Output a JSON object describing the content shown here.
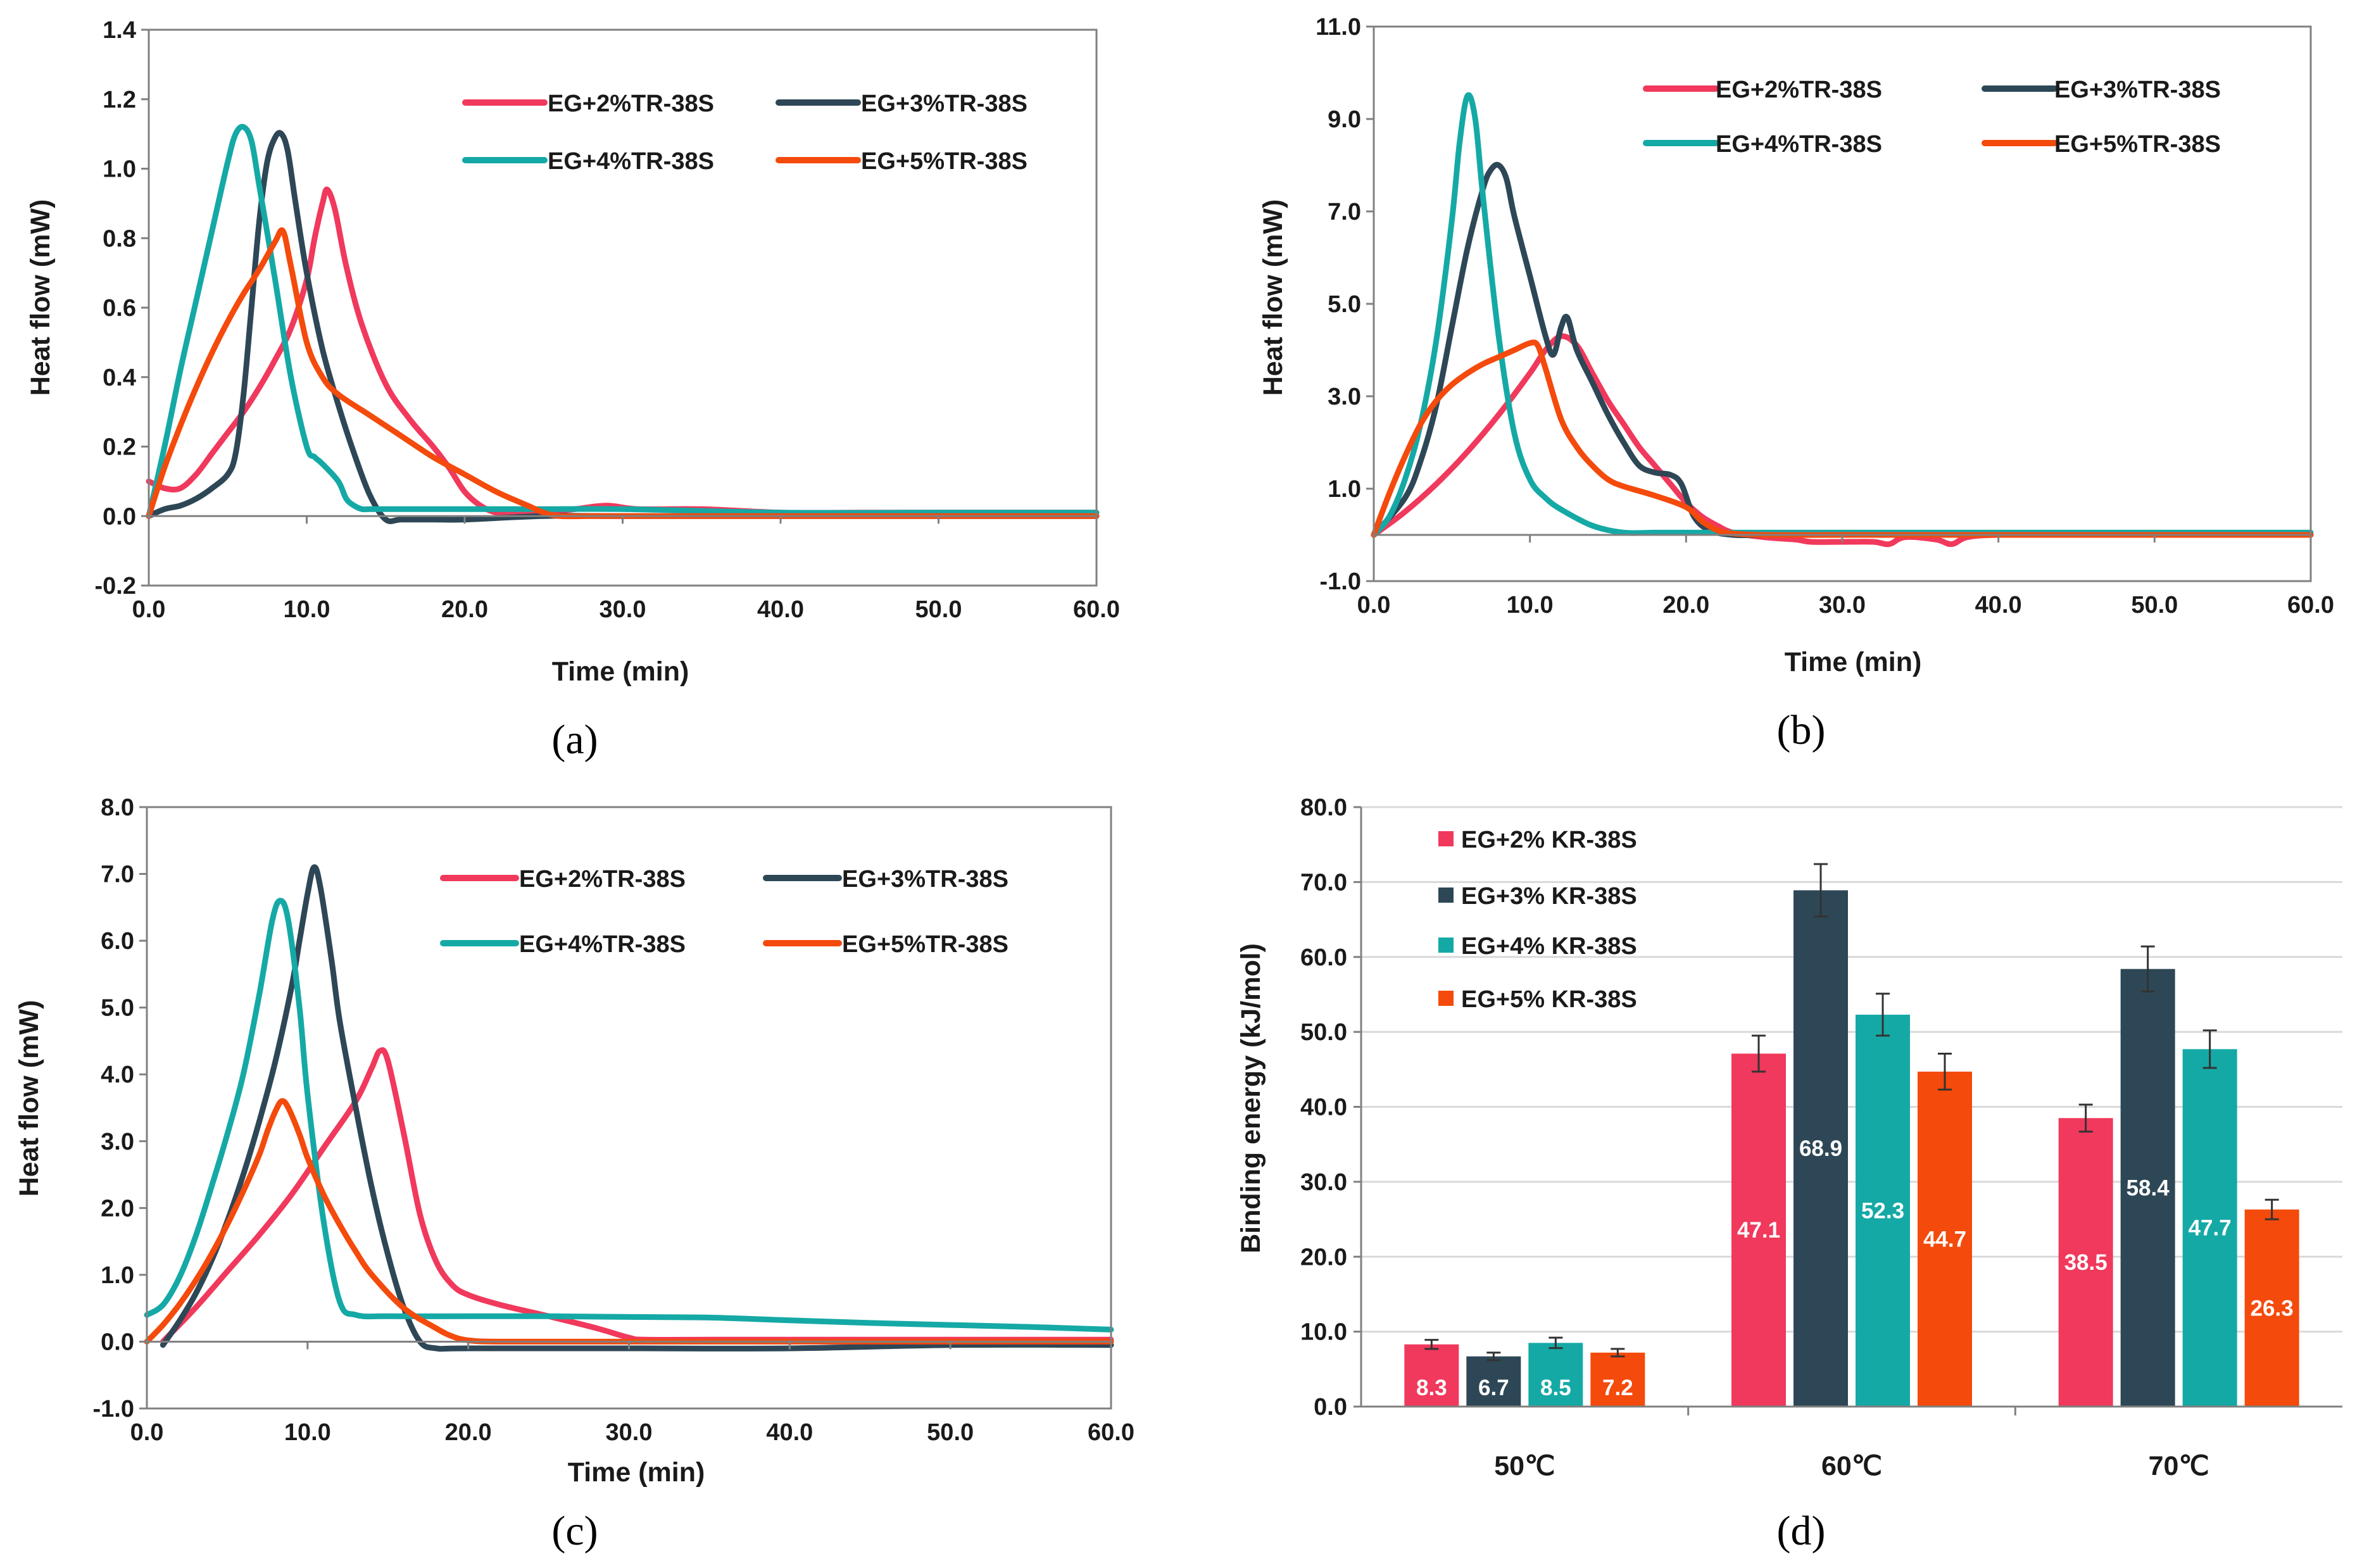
{
  "colors": {
    "EG+2%": "#f0395c",
    "EG+3%": "#2e4756",
    "EG+4%": "#15a9a6",
    "EG+5%": "#f44a0c",
    "axis": "#808080",
    "grid": "#d9d9d9"
  },
  "chart_data": [
    {
      "id": "a",
      "type": "line",
      "panel_label": "(a)",
      "xlabel": "Time (min)",
      "ylabel": "Heat flow (mW)",
      "xlim": [
        0,
        60
      ],
      "ylim": [
        -0.2,
        1.4
      ],
      "xticks": [
        "0.0",
        "10.0",
        "20.0",
        "30.0",
        "40.0",
        "50.0",
        "60.0"
      ],
      "yticks": [
        "-0.2",
        "0.0",
        "0.2",
        "0.4",
        "0.6",
        "0.8",
        "1.0",
        "1.2",
        "1.4"
      ],
      "legend_position": "top-right",
      "series": [
        {
          "name": "EG+2%TR-38S",
          "color": "#f0395c",
          "x": [
            0,
            1,
            2,
            3,
            4,
            5,
            6,
            7,
            8,
            9,
            10,
            10.5,
            11,
            11.3,
            11.8,
            12.5,
            13.5,
            15,
            16.5,
            18,
            19,
            20,
            21,
            22,
            23,
            25,
            27,
            29,
            31,
            35,
            40,
            45,
            50,
            55,
            60
          ],
          "y": [
            0.1,
            0.08,
            0.08,
            0.12,
            0.18,
            0.24,
            0.3,
            0.37,
            0.45,
            0.54,
            0.68,
            0.8,
            0.9,
            0.94,
            0.88,
            0.72,
            0.55,
            0.38,
            0.28,
            0.2,
            0.14,
            0.07,
            0.03,
            0.01,
            0.01,
            0.01,
            0.02,
            0.03,
            0.02,
            0.02,
            0.01,
            0.01,
            0.01,
            0.01,
            0.01
          ]
        },
        {
          "name": "EG+3%TR-38S",
          "color": "#2e4756",
          "x": [
            0,
            1,
            2,
            3,
            4,
            5,
            5.5,
            6,
            6.5,
            7,
            7.5,
            8,
            8.4,
            8.8,
            9.3,
            10,
            11,
            12,
            13,
            14,
            15,
            16,
            18,
            20,
            25,
            30,
            40,
            50,
            60
          ],
          "y": [
            0.0,
            0.02,
            0.03,
            0.05,
            0.08,
            0.12,
            0.18,
            0.35,
            0.6,
            0.85,
            1.02,
            1.09,
            1.1,
            1.05,
            0.9,
            0.7,
            0.48,
            0.32,
            0.18,
            0.06,
            -0.01,
            -0.01,
            -0.01,
            -0.01,
            0.0,
            0.0,
            0.0,
            0.0,
            0.0
          ]
        },
        {
          "name": "EG+4%TR-38S",
          "color": "#15a9a6",
          "x": [
            0,
            1,
            2,
            3,
            4,
            5,
            5.5,
            6,
            6.5,
            7,
            8,
            9,
            10,
            10.5,
            11,
            12,
            12.5,
            13,
            13.5,
            14,
            15,
            20,
            25,
            30,
            40,
            50,
            60
          ],
          "y": [
            0.0,
            0.2,
            0.42,
            0.62,
            0.82,
            1.02,
            1.1,
            1.12,
            1.08,
            0.95,
            0.68,
            0.4,
            0.2,
            0.17,
            0.15,
            0.1,
            0.05,
            0.03,
            0.02,
            0.02,
            0.02,
            0.02,
            0.02,
            0.02,
            0.01,
            0.01,
            0.01
          ]
        },
        {
          "name": "EG+5%TR-38S",
          "color": "#f44a0c",
          "x": [
            0,
            1,
            2,
            3,
            4,
            5,
            6,
            7,
            8,
            8.5,
            9,
            10,
            11,
            12,
            14,
            16,
            18,
            20,
            22,
            24,
            25,
            26,
            28,
            30,
            40,
            50,
            60
          ],
          "y": [
            0.0,
            0.14,
            0.26,
            0.37,
            0.47,
            0.56,
            0.64,
            0.71,
            0.79,
            0.82,
            0.72,
            0.5,
            0.4,
            0.35,
            0.29,
            0.23,
            0.17,
            0.12,
            0.07,
            0.03,
            0.01,
            0.0,
            0.0,
            0.0,
            0.0,
            0.0,
            0.0
          ]
        }
      ]
    },
    {
      "id": "b",
      "type": "line",
      "panel_label": "(b)",
      "xlabel": "Time (min)",
      "ylabel": "Heat flow (mW)",
      "xlim": [
        0,
        60
      ],
      "ylim": [
        -1,
        11
      ],
      "xticks": [
        "0.0",
        "10.0",
        "20.0",
        "30.0",
        "40.0",
        "50.0",
        "60.0"
      ],
      "yticks": [
        "-1.0",
        "1.0",
        "3.0",
        "5.0",
        "7.0",
        "9.0",
        "11.0"
      ],
      "legend_position": "top-right",
      "series": [
        {
          "name": "EG+2%TR-38S",
          "color": "#f0395c",
          "x": [
            0,
            2,
            4,
            6,
            8,
            10,
            11,
            12,
            13,
            14,
            15,
            16,
            17,
            18,
            19,
            20,
            21,
            22,
            23,
            25,
            27,
            28,
            30,
            32,
            33,
            34,
            36,
            37,
            38,
            40,
            45,
            50,
            55,
            60
          ],
          "y": [
            0.0,
            0.5,
            1.1,
            1.8,
            2.6,
            3.5,
            4.0,
            4.3,
            4.1,
            3.5,
            2.9,
            2.4,
            1.9,
            1.5,
            1.1,
            0.7,
            0.4,
            0.2,
            0.05,
            -0.05,
            -0.1,
            -0.15,
            -0.15,
            -0.15,
            -0.2,
            -0.05,
            -0.1,
            -0.2,
            -0.05,
            0.0,
            0.0,
            0.0,
            0.0,
            0.0
          ]
        },
        {
          "name": "EG+3%TR-38S",
          "color": "#2e4756",
          "x": [
            0,
            2,
            3,
            4,
            5,
            6,
            7,
            7.5,
            8,
            8.5,
            9,
            10,
            11,
            11.5,
            12,
            12.4,
            13,
            14,
            15,
            16,
            17,
            18,
            19,
            19.7,
            20.5,
            21.5,
            23,
            25,
            30,
            40,
            50,
            60
          ],
          "y": [
            0.0,
            0.8,
            1.6,
            2.8,
            4.5,
            6.2,
            7.5,
            7.9,
            8.0,
            7.7,
            6.9,
            5.6,
            4.3,
            3.9,
            4.5,
            4.7,
            4.0,
            3.3,
            2.6,
            2.0,
            1.5,
            1.35,
            1.3,
            1.1,
            0.4,
            0.1,
            0.0,
            0.0,
            0.0,
            0.0,
            0.0,
            0.0
          ]
        },
        {
          "name": "EG+4%TR-38S",
          "color": "#15a9a6",
          "x": [
            0,
            1,
            2,
            3,
            4,
            5,
            5.5,
            6,
            6.5,
            7,
            8,
            9,
            10,
            11,
            12,
            14,
            16,
            18,
            20,
            30,
            40,
            50,
            60
          ],
          "y": [
            0.0,
            0.4,
            1.2,
            2.4,
            4.2,
            6.8,
            8.5,
            9.5,
            9.0,
            7.3,
            4.3,
            2.2,
            1.2,
            0.8,
            0.55,
            0.2,
            0.05,
            0.05,
            0.05,
            0.05,
            0.05,
            0.05,
            0.05
          ]
        },
        {
          "name": "EG+5%TR-38S",
          "color": "#f44a0c",
          "x": [
            0,
            1,
            2,
            3,
            4,
            5,
            6,
            7,
            8,
            9,
            10,
            10.5,
            11,
            12,
            13,
            14,
            15,
            16,
            18,
            20,
            21,
            22,
            23,
            25,
            30,
            40,
            50,
            60
          ],
          "y": [
            0.0,
            0.9,
            1.7,
            2.4,
            2.9,
            3.25,
            3.5,
            3.7,
            3.85,
            4.0,
            4.15,
            4.1,
            3.6,
            2.5,
            1.9,
            1.5,
            1.2,
            1.05,
            0.85,
            0.6,
            0.3,
            0.1,
            0.03,
            0.0,
            0.0,
            0.0,
            0.0,
            0.0
          ]
        }
      ]
    },
    {
      "id": "c",
      "type": "line",
      "panel_label": "(c)",
      "xlabel": "Time (min)",
      "ylabel": "Heat flow (mW)",
      "xlim": [
        0,
        60
      ],
      "ylim": [
        -1,
        8
      ],
      "xticks": [
        "0.0",
        "10.0",
        "20.0",
        "30.0",
        "40.0",
        "50.0",
        "60.0"
      ],
      "yticks": [
        "-1.0",
        "0.0",
        "1.0",
        "2.0",
        "3.0",
        "4.0",
        "5.0",
        "6.0",
        "7.0",
        "8.0"
      ],
      "legend_position": "top-right",
      "series": [
        {
          "name": "EG+2%TR-38S",
          "color": "#f0395c",
          "x": [
            1,
            3,
            5,
            7,
            9,
            11,
            13,
            14,
            14.5,
            15,
            16,
            17,
            18,
            19,
            20,
            22,
            25,
            28,
            30,
            31,
            35,
            40,
            50,
            60
          ],
          "y": [
            0.0,
            0.5,
            1.05,
            1.6,
            2.2,
            2.9,
            3.6,
            4.1,
            4.35,
            4.2,
            3.1,
            1.9,
            1.2,
            0.85,
            0.7,
            0.55,
            0.38,
            0.2,
            0.06,
            0.03,
            0.03,
            0.03,
            0.03,
            0.03
          ]
        },
        {
          "name": "EG+3%TR-38S",
          "color": "#2e4756",
          "x": [
            1,
            2,
            3,
            4,
            5,
            6,
            7,
            8,
            9,
            9.5,
            10,
            10.4,
            10.8,
            11.5,
            12,
            13,
            14,
            15,
            16,
            17,
            18,
            20,
            30,
            40,
            50,
            60
          ],
          "y": [
            -0.05,
            0.3,
            0.7,
            1.2,
            1.8,
            2.5,
            3.3,
            4.2,
            5.3,
            6.0,
            6.7,
            7.1,
            6.8,
            5.7,
            4.8,
            3.5,
            2.3,
            1.3,
            0.5,
            0.0,
            -0.1,
            -0.1,
            -0.1,
            -0.1,
            -0.05,
            -0.05
          ]
        },
        {
          "name": "EG+4%TR-38S",
          "color": "#15a9a6",
          "x": [
            0,
            1,
            2,
            3,
            4,
            5,
            6,
            7,
            7.8,
            8.3,
            8.8,
            9.5,
            10,
            11,
            12,
            13,
            15,
            20,
            25,
            30,
            35,
            40,
            45,
            50,
            55,
            60
          ],
          "y": [
            0.4,
            0.55,
            0.95,
            1.55,
            2.3,
            3.1,
            4.0,
            5.2,
            6.3,
            6.6,
            6.3,
            5.0,
            3.7,
            1.8,
            0.6,
            0.4,
            0.38,
            0.38,
            0.38,
            0.37,
            0.36,
            0.32,
            0.28,
            0.25,
            0.22,
            0.18
          ]
        },
        {
          "name": "EG+5%TR-38S",
          "color": "#f44a0c",
          "x": [
            0,
            1,
            2,
            3,
            4,
            5,
            6,
            7,
            7.5,
            8,
            8.4,
            8.8,
            9.5,
            10,
            11,
            12,
            13,
            14,
            16,
            18,
            19,
            20,
            22,
            30,
            40,
            50,
            60
          ],
          "y": [
            0.0,
            0.25,
            0.55,
            0.9,
            1.3,
            1.75,
            2.25,
            2.8,
            3.15,
            3.45,
            3.6,
            3.5,
            3.1,
            2.75,
            2.2,
            1.75,
            1.35,
            1.0,
            0.5,
            0.2,
            0.08,
            0.02,
            0.0,
            0.0,
            0.0,
            0.0,
            0.0
          ]
        }
      ]
    },
    {
      "id": "d",
      "type": "bar",
      "panel_label": "(d)",
      "xlabel": "",
      "ylabel": "Binding energy  (kJ/mol)",
      "ylim": [
        0,
        80
      ],
      "yticks": [
        "0.0",
        "10.0",
        "20.0",
        "30.0",
        "40.0",
        "50.0",
        "60.0",
        "70.0",
        "80.0"
      ],
      "grid": true,
      "legend_position": "top-left",
      "categories": [
        "50℃",
        "60℃",
        "70℃"
      ],
      "series": [
        {
          "name": "EG+2% KR-38S",
          "color": "#f0395c",
          "values": [
            8.3,
            47.1,
            38.5
          ],
          "labels": [
            "8.3",
            "47.1",
            "38.5"
          ],
          "errors": [
            0.6,
            2.4,
            1.8
          ]
        },
        {
          "name": "EG+3% KR-38S",
          "color": "#2e4756",
          "values": [
            6.7,
            68.9,
            58.4
          ],
          "labels": [
            "6.7",
            "68.9",
            "58.4"
          ],
          "errors": [
            0.5,
            3.5,
            3.0
          ]
        },
        {
          "name": "EG+4% KR-38S",
          "color": "#15a9a6",
          "values": [
            8.5,
            52.3,
            47.7
          ],
          "labels": [
            "8.5",
            "52.3",
            "47.7"
          ],
          "errors": [
            0.7,
            2.8,
            2.5
          ]
        },
        {
          "name": "EG+5% KR-38S",
          "color": "#f44a0c",
          "values": [
            7.2,
            44.7,
            26.3
          ],
          "labels": [
            "7.2",
            "44.7",
            "26.3"
          ],
          "errors": [
            0.5,
            2.4,
            1.3
          ]
        }
      ]
    }
  ]
}
